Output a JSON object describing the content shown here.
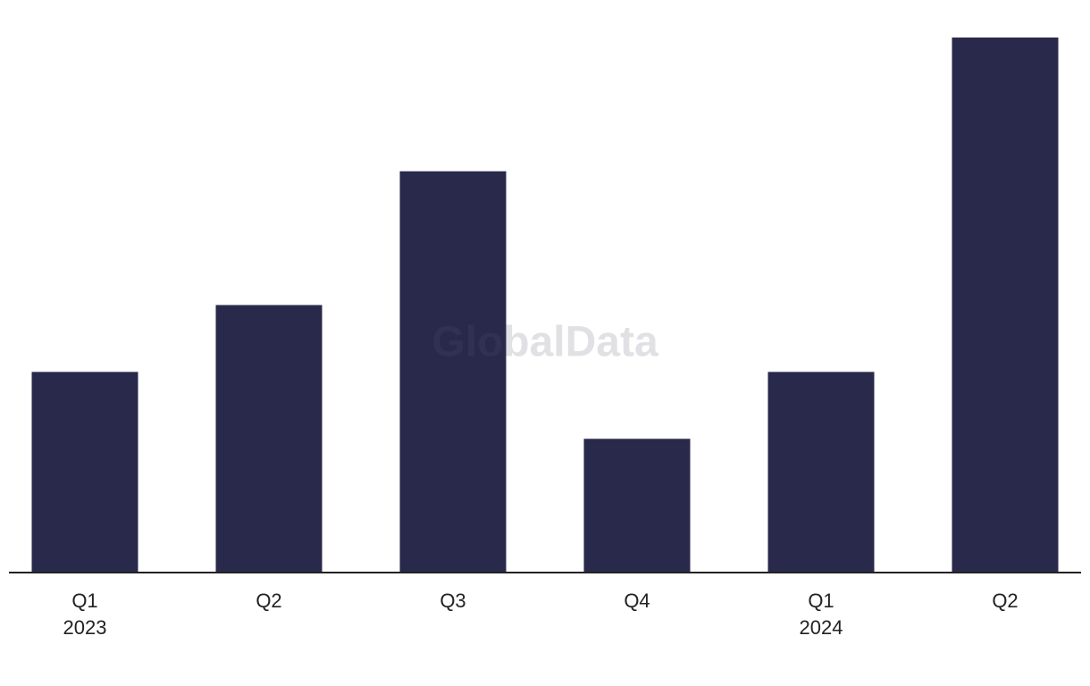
{
  "chart_data": {
    "type": "bar",
    "categories": [
      "Q1",
      "Q2",
      "Q3",
      "Q4",
      "Q1",
      "Q2"
    ],
    "years": [
      "2023",
      null,
      null,
      null,
      "2024",
      null
    ],
    "values": [
      3,
      4,
      6,
      2,
      3,
      8
    ],
    "color": "#29294b",
    "ylim": [
      0,
      8
    ],
    "watermark": "GlobalData"
  }
}
